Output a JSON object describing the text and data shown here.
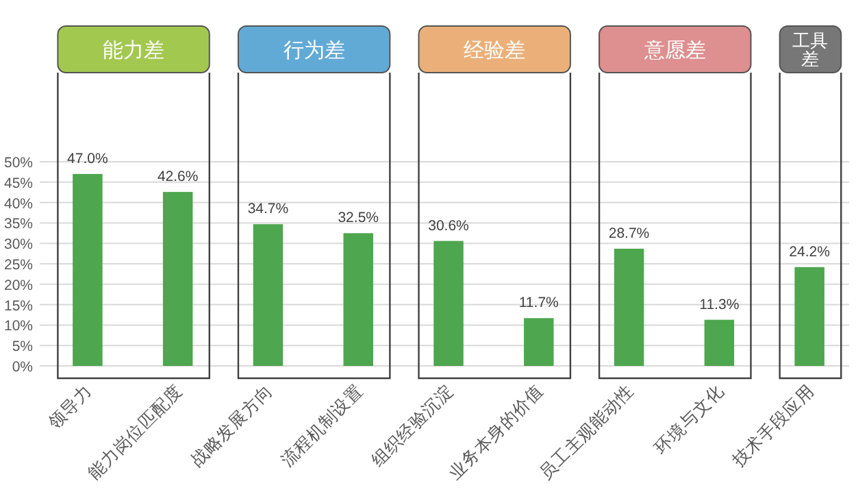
{
  "chart_data": {
    "type": "bar",
    "categories": [
      "领导力",
      "能力岗位匹配度",
      "战略发展方向",
      "流程机制设置",
      "组织经验沉淀",
      "业务本身的价值",
      "员工主观能动性",
      "环境与文化",
      "技术手段应用"
    ],
    "values": [
      47.0,
      42.6,
      34.7,
      32.5,
      30.6,
      11.7,
      28.7,
      11.3,
      24.2
    ],
    "color": "#4ea64f",
    "value_labels": [
      "47.0%",
      "42.6%",
      "34.7%",
      "32.5%",
      "30.6%",
      "11.7%",
      "28.7%",
      "11.3%",
      "24.2%"
    ],
    "ylim": [
      0,
      50
    ],
    "yticks": [
      {
        "value": 0,
        "label": "0%"
      },
      {
        "value": 5,
        "label": "5%"
      },
      {
        "value": 10,
        "label": "10%"
      },
      {
        "value": 15,
        "label": "15%"
      },
      {
        "value": 20,
        "label": "20%"
      },
      {
        "value": 25,
        "label": "25%"
      },
      {
        "value": 30,
        "label": "30%"
      },
      {
        "value": 35,
        "label": "35%"
      },
      {
        "value": 40,
        "label": "40%"
      },
      {
        "value": 45,
        "label": "45%"
      },
      {
        "value": 50,
        "label": "50%"
      }
    ],
    "grid": "y",
    "annotations": [
      "能力差",
      "行为差",
      "经验差",
      "意愿差",
      "工具差"
    ]
  }
}
